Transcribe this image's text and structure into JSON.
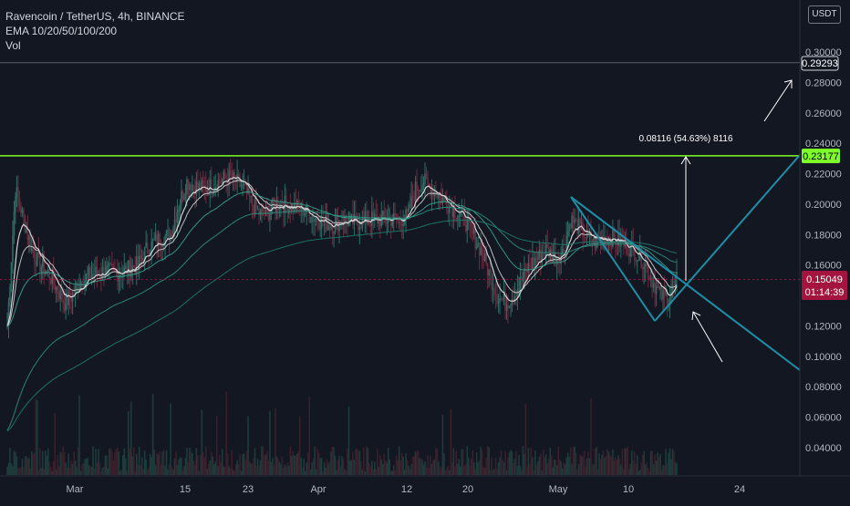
{
  "legend": {
    "symbol_line": "Ravencoin / TetherUS, 4h, BINANCE",
    "ema_line": "EMA 10/20/50/100/200",
    "vol_line": "Vol"
  },
  "currency_label": "USDT",
  "colors": {
    "background": "#131722",
    "up_candle": "#2e6b64",
    "down_candle": "#6b2a3e",
    "resistance": "#7dff2a",
    "current_price": "#a3153e",
    "trend_lines": "#1f8fa8",
    "ema_white": "#e6e6e6",
    "ema_teal": "#3aa28f"
  },
  "price_tags": {
    "top": "0.29293",
    "resistance": "0.23177",
    "current": "0.15049",
    "countdown": "01:14:39"
  },
  "annotation": {
    "measure_label": "0.08116 (54.63%) 8116"
  },
  "chart_data": {
    "type": "line",
    "title": "Ravencoin / TetherUS, 4h, BINANCE",
    "x_tick_labels": [
      "Mar",
      "15",
      "23",
      "Apr",
      "12",
      "20",
      "May",
      "10",
      "24"
    ],
    "y_tick_labels": [
      "0.04000",
      "0.06000",
      "0.08000",
      "0.10000",
      "0.12000",
      "0.14000",
      "0.16000",
      "0.18000",
      "0.20000",
      "0.22000",
      "0.24000",
      "0.26000",
      "0.28000",
      "0.30000"
    ],
    "ylim": [
      0.0,
      0.32
    ],
    "grid": false,
    "legend_position": "top-left",
    "levels": {
      "resistance": 0.23177,
      "top_marker": 0.29293,
      "current_price": 0.15049
    },
    "series": [
      {
        "x": [
          "Feb 22",
          "Feb 23",
          "Feb 24",
          "Feb 25",
          "Feb 26",
          "Feb 27",
          "Feb 28",
          "Mar 1",
          "Mar 2",
          "Mar 3",
          "Mar 4",
          "Mar 5",
          "Mar 6",
          "Mar 7",
          "Mar 8",
          "Mar 9",
          "Mar 10",
          "Mar 11",
          "Mar 12",
          "Mar 13",
          "Mar 14",
          "Mar 15",
          "Mar 16",
          "Mar 17",
          "Mar 18",
          "Mar 19",
          "Mar 20",
          "Mar 21",
          "Mar 22",
          "Mar 23",
          "Mar 24",
          "Mar 25",
          "Mar 26",
          "Mar 27",
          "Mar 28",
          "Mar 29",
          "Mar 30",
          "Mar 31",
          "Apr 1",
          "Apr 2",
          "Apr 3",
          "Apr 4",
          "Apr 5",
          "Apr 6",
          "Apr 7",
          "Apr 8",
          "Apr 9",
          "Apr 10",
          "Apr 11",
          "Apr 12",
          "Apr 13",
          "Apr 14",
          "Apr 15",
          "Apr 16",
          "Apr 17",
          "Apr 18",
          "Apr 19",
          "Apr 20",
          "Apr 21",
          "Apr 22",
          "Apr 23",
          "Apr 24",
          "Apr 25",
          "Apr 26",
          "Apr 27",
          "Apr 28",
          "Apr 29",
          "Apr 30",
          "May 1",
          "May 2",
          "May 3",
          "May 4",
          "May 5",
          "May 6",
          "May 7",
          "May 8",
          "May 9",
          "May 10",
          "May 11",
          "May 12",
          "May 13",
          "May 14",
          "May 15"
        ],
        "y": [
          0.12,
          0.21,
          0.19,
          0.17,
          0.16,
          0.155,
          0.145,
          0.135,
          0.14,
          0.15,
          0.153,
          0.155,
          0.156,
          0.155,
          0.155,
          0.158,
          0.16,
          0.17,
          0.175,
          0.178,
          0.18,
          0.2,
          0.215,
          0.212,
          0.21,
          0.212,
          0.215,
          0.218,
          0.215,
          0.21,
          0.2,
          0.193,
          0.195,
          0.2,
          0.2,
          0.198,
          0.197,
          0.193,
          0.19,
          0.188,
          0.186,
          0.19,
          0.188,
          0.188,
          0.19,
          0.19,
          0.19,
          0.19,
          0.19,
          0.192,
          0.21,
          0.215,
          0.21,
          0.205,
          0.2,
          0.195,
          0.19,
          0.18,
          0.17,
          0.155,
          0.14,
          0.135,
          0.14,
          0.15,
          0.16,
          0.165,
          0.17,
          0.165,
          0.168,
          0.19,
          0.185,
          0.178,
          0.175,
          0.178,
          0.178,
          0.175,
          0.172,
          0.168,
          0.162,
          0.15,
          0.14,
          0.138,
          0.15
        ]
      }
    ]
  }
}
